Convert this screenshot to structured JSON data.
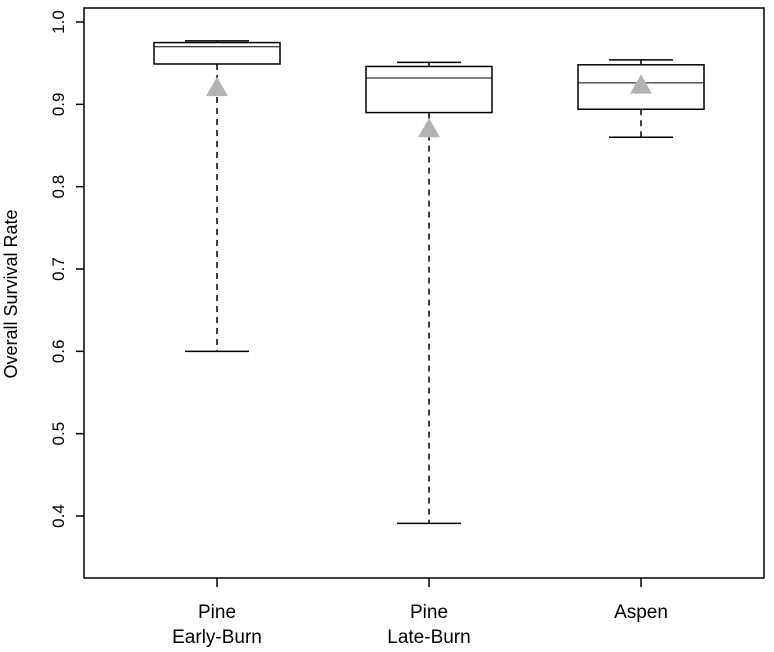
{
  "chart_data": {
    "type": "box",
    "ylabel": "Overall Survival Rate",
    "ylim": [
      0.36,
      1.02
    ],
    "yticks": [
      0.4,
      0.5,
      0.6,
      0.7,
      0.8,
      0.9,
      1.0
    ],
    "ytick_labels": [
      "0.4",
      "0.5",
      "0.6",
      "0.7",
      "0.8",
      "0.9",
      "1.0"
    ],
    "grid": false,
    "mean_marker_color": "#b3b3b3",
    "categories": [
      {
        "label_lines": [
          "Pine",
          "Early-Burn"
        ],
        "whisker_low": 0.6,
        "q1": 0.949,
        "median": 0.97,
        "q3": 0.975,
        "whisker_high": 0.977,
        "mean": 0.92
      },
      {
        "label_lines": [
          "Pine",
          "Late-Burn"
        ],
        "whisker_low": 0.391,
        "q1": 0.89,
        "median": 0.932,
        "q3": 0.946,
        "whisker_high": 0.951,
        "mean": 0.87
      },
      {
        "label_lines": [
          "Aspen"
        ],
        "whisker_low": 0.86,
        "q1": 0.894,
        "median": 0.926,
        "q3": 0.948,
        "whisker_high": 0.954,
        "mean": 0.923
      }
    ]
  }
}
